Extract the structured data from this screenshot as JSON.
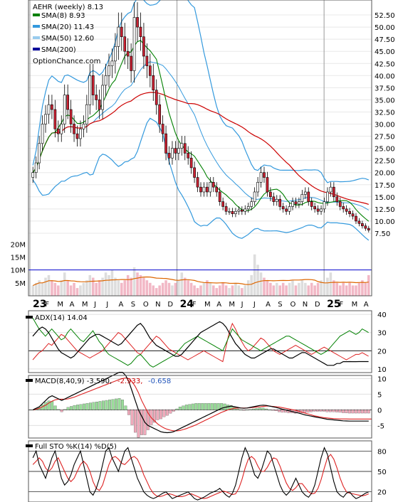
{
  "chart_data": {
    "type": "stock-chart",
    "main": {
      "title": "AEHR (weekly) 8.13",
      "legend": [
        {
          "label": "SMA(8) 8.93",
          "color": "#008000"
        },
        {
          "label": "SMA(20) 11.43",
          "color": "#3399dd"
        },
        {
          "label": "SMA(50) 12.60",
          "color": "#99ccee"
        },
        {
          "label": "SMA(200)",
          "color": "#000099"
        }
      ],
      "watermark": "OptionChance.com",
      "y_ticks": [
        "52.50",
        "50.00",
        "47.50",
        "45.00",
        "42.50",
        "40.00",
        "37.50",
        "35.00",
        "32.50",
        "30.00",
        "27.50",
        "25.00",
        "22.50",
        "20.00",
        "17.50",
        "15.00",
        "12.50",
        "10.00",
        "7.50"
      ],
      "y_range": [
        5,
        55
      ],
      "volume_ticks": [
        "20M",
        "15M",
        "10M",
        "5M"
      ],
      "volume_range": [
        0,
        22
      ],
      "closes": [
        20,
        22,
        26,
        30,
        32,
        34,
        33,
        29,
        28,
        30,
        36,
        33,
        30,
        28,
        27,
        29,
        30,
        34,
        40,
        36,
        35,
        33,
        38,
        40,
        42,
        43,
        46,
        50,
        48,
        45,
        44,
        41,
        52,
        50,
        48,
        44,
        42,
        40,
        37,
        34,
        30,
        28,
        24,
        23,
        25,
        24,
        25,
        26,
        24,
        23,
        21,
        19,
        17,
        16,
        17,
        16,
        18,
        17,
        16,
        14,
        13,
        12,
        12,
        11.5,
        12,
        12.3,
        12,
        12.5,
        13,
        14,
        16,
        18,
        20,
        19,
        16,
        15,
        14,
        14.5,
        13,
        12.5,
        12,
        13,
        14,
        13.5,
        14,
        15.5,
        16,
        14,
        13,
        12.5,
        12,
        12.5,
        14,
        16,
        17,
        15,
        14,
        13,
        12.5,
        12,
        11.5,
        11,
        10,
        9.5,
        9,
        8.5,
        8.13
      ],
      "volumes": [
        4,
        5,
        6,
        5,
        7,
        8,
        6,
        5,
        4,
        6,
        9,
        6,
        4,
        5,
        3,
        4,
        5,
        6,
        8,
        7,
        5,
        6,
        7,
        9,
        8,
        10,
        7,
        6,
        5,
        6,
        8,
        7,
        11,
        9,
        8,
        7,
        6,
        5,
        4,
        3,
        4,
        5,
        6,
        5,
        4,
        5,
        6,
        9,
        7,
        6,
        5,
        4,
        3,
        4,
        5,
        6,
        5,
        4,
        3,
        4,
        5,
        4,
        3,
        4,
        5,
        4,
        3,
        4,
        6,
        8,
        16,
        12,
        9,
        7,
        6,
        5,
        4,
        5,
        4,
        5,
        4,
        5,
        6,
        4,
        5,
        6,
        5,
        4,
        5,
        4,
        5,
        6,
        5,
        7,
        9,
        6,
        5,
        4,
        5,
        4,
        5,
        4,
        4,
        5,
        6,
        5,
        8
      ],
      "sma200_volume": 10
    },
    "x_axis": {
      "labels": [
        "23",
        "F",
        "M",
        "A",
        "M",
        "J",
        "J",
        "A",
        "S",
        "O",
        "N",
        "D",
        "24",
        "F",
        "M",
        "A",
        "M",
        "J",
        "J",
        "A",
        "S",
        "O",
        "N",
        "D",
        "25",
        "F",
        "M",
        "A"
      ],
      "year_labels": [
        "23",
        "24",
        "25"
      ]
    },
    "adx": {
      "label": "ADX(14) 14.04",
      "y_ticks": [
        "40",
        "30",
        "20",
        "10"
      ],
      "y_range": [
        8,
        42
      ],
      "adx": [
        28,
        30,
        32,
        33,
        32,
        30,
        27,
        24,
        21,
        19,
        18,
        17,
        16,
        17,
        19,
        21,
        23,
        25,
        27,
        28,
        29,
        29,
        28,
        27,
        26,
        25,
        24,
        23,
        24,
        26,
        28,
        30,
        32,
        34,
        35,
        33,
        30,
        27,
        25,
        23,
        22,
        21,
        20,
        19,
        18,
        17,
        17,
        18,
        20,
        22,
        24,
        26,
        28,
        30,
        31,
        32,
        33,
        34,
        35,
        36,
        35,
        33,
        30,
        27,
        24,
        22,
        20,
        18,
        17,
        16,
        16,
        17,
        18,
        19,
        20,
        21,
        21,
        20,
        19,
        18,
        17,
        16,
        16,
        17,
        18,
        19,
        19,
        18,
        17,
        16,
        15,
        14,
        13,
        12,
        12,
        12,
        13,
        13,
        14,
        14,
        14.04,
        14,
        14,
        14.04,
        14.04,
        14.04,
        14.04
      ],
      "plus_di": [
        38,
        35,
        32,
        30,
        28,
        30,
        32,
        30,
        28,
        26,
        27,
        30,
        32,
        30,
        28,
        26,
        25,
        27,
        29,
        31,
        28,
        25,
        23,
        20,
        18,
        17,
        16,
        15,
        14,
        13,
        12,
        13,
        15,
        17,
        18,
        16,
        14,
        12,
        11,
        12,
        13,
        14,
        15,
        16,
        17,
        18,
        20,
        22,
        24,
        25,
        26,
        27,
        28,
        27,
        26,
        25,
        24,
        23,
        22,
        21,
        20,
        24,
        28,
        32,
        30,
        28,
        26,
        25,
        24,
        23,
        22,
        21,
        20,
        21,
        22,
        23,
        24,
        25,
        26,
        27,
        28,
        28,
        27,
        26,
        25,
        24,
        23,
        22,
        21,
        20,
        19,
        18,
        19,
        20,
        22,
        24,
        26,
        28,
        29,
        30,
        31,
        30,
        29,
        30,
        32,
        31,
        30
      ],
      "minus_di": [
        15,
        17,
        19,
        20,
        22,
        24,
        23,
        25,
        27,
        29,
        28,
        26,
        24,
        22,
        20,
        19,
        18,
        17,
        16,
        17,
        18,
        19,
        20,
        22,
        24,
        26,
        28,
        30,
        29,
        27,
        25,
        23,
        21,
        19,
        18,
        20,
        22,
        24,
        26,
        28,
        27,
        25,
        23,
        21,
        20,
        19,
        18,
        17,
        16,
        15,
        16,
        17,
        18,
        19,
        20,
        19,
        18,
        17,
        16,
        15,
        14,
        22,
        30,
        35,
        32,
        28,
        25,
        22,
        20,
        21,
        23,
        25,
        27,
        26,
        24,
        22,
        20,
        19,
        18,
        19,
        20,
        21,
        22,
        23,
        22,
        21,
        20,
        19,
        18,
        19,
        20,
        21,
        22,
        21,
        20,
        19,
        18,
        17,
        16,
        15,
        16,
        17,
        18,
        18,
        19,
        18,
        17
      ]
    },
    "macd": {
      "label": "MACD(8,40,9) -3.590,",
      "signal_label": "-2.933,",
      "hist_label": "-0.658",
      "y_ticks": [
        "10",
        "5",
        "0",
        "-5"
      ],
      "y_range": [
        -9,
        11
      ],
      "macd": [
        0,
        0.5,
        1,
        2,
        3,
        4,
        4.5,
        4,
        3.5,
        3,
        3.5,
        4,
        4.5,
        5,
        5.5,
        6,
        6.5,
        7,
        7.5,
        8,
        8.5,
        9,
        9.5,
        10,
        10.5,
        11,
        11.5,
        12,
        12,
        11,
        9,
        6,
        3,
        0,
        -2,
        -4,
        -5,
        -5.5,
        -6,
        -6.5,
        -7,
        -7.2,
        -7.3,
        -7.2,
        -7,
        -6.5,
        -6,
        -5.5,
        -5,
        -4.5,
        -4,
        -3.5,
        -3,
        -2.5,
        -2,
        -1.5,
        -1,
        -0.5,
        0,
        0.5,
        0.8,
        1,
        1.2,
        1,
        0.8,
        0.6,
        0.5,
        0.6,
        0.8,
        1,
        1.2,
        1.4,
        1.5,
        1.4,
        1.2,
        1,
        0.8,
        0.5,
        0.2,
        0,
        -0.3,
        -0.5,
        -0.8,
        -1,
        -1.3,
        -1.6,
        -1.8,
        -2,
        -2.2,
        -2.4,
        -2.6,
        -2.8,
        -3,
        -3.1,
        -3.2,
        -3.3,
        -3.4,
        -3.5,
        -3.55,
        -3.59,
        -3.59,
        -3.59,
        -3.59,
        -3.59,
        -3.59,
        -3.59
      ],
      "signal": [
        0,
        0.2,
        0.5,
        1,
        1.5,
        2.2,
        2.8,
        3.2,
        3.4,
        3.4,
        3.4,
        3.5,
        3.8,
        4.1,
        4.5,
        4.9,
        5.3,
        5.7,
        6.1,
        6.5,
        6.9,
        7.3,
        7.7,
        8.1,
        8.5,
        8.9,
        9.3,
        9.7,
        10,
        10.2,
        10,
        9,
        7.5,
        5.5,
        3,
        1,
        -1,
        -2.5,
        -3.5,
        -4.5,
        -5.2,
        -5.8,
        -6.2,
        -6.5,
        -6.7,
        -6.7,
        -6.6,
        -6.3,
        -6,
        -5.6,
        -5.2,
        -4.8,
        -4.3,
        -3.8,
        -3.3,
        -2.8,
        -2.3,
        -1.8,
        -1.3,
        -0.8,
        -0.4,
        0,
        0.3,
        0.5,
        0.6,
        0.6,
        0.6,
        0.6,
        0.7,
        0.8,
        0.9,
        1,
        1.1,
        1.2,
        1.2,
        1.1,
        1,
        0.9,
        0.7,
        0.5,
        0.3,
        0.1,
        -0.1,
        -0.4,
        -0.7,
        -1,
        -1.3,
        -1.6,
        -1.9,
        -2.1,
        -2.3,
        -2.5,
        -2.6,
        -2.7,
        -2.8,
        -2.85,
        -2.9,
        -2.91,
        -2.92,
        -2.93,
        -2.93,
        -2.93,
        -2.93,
        -2.93,
        -2.93,
        -2.93,
        -2.933
      ]
    },
    "sto": {
      "label": "Full STO %K(14) %D(5)",
      "y_ticks": [
        "80",
        "50",
        "20"
      ],
      "y_range": [
        5,
        95
      ],
      "k": [
        70,
        80,
        60,
        50,
        40,
        55,
        70,
        80,
        60,
        40,
        30,
        35,
        45,
        60,
        70,
        80,
        60,
        40,
        20,
        15,
        25,
        40,
        60,
        80,
        85,
        70,
        60,
        50,
        65,
        80,
        85,
        70,
        55,
        40,
        30,
        20,
        15,
        12,
        10,
        12,
        15,
        18,
        20,
        15,
        10,
        12,
        14,
        16,
        18,
        20,
        15,
        10,
        8,
        10,
        12,
        15,
        18,
        20,
        22,
        25,
        20,
        15,
        12,
        18,
        30,
        50,
        70,
        85,
        75,
        60,
        45,
        40,
        50,
        65,
        80,
        75,
        60,
        45,
        30,
        20,
        15,
        20,
        30,
        40,
        30,
        20,
        15,
        12,
        18,
        30,
        50,
        70,
        85,
        75,
        55,
        35,
        20,
        15,
        12,
        18,
        20,
        14,
        10,
        12,
        15,
        18,
        20
      ],
      "d": [
        60,
        65,
        70,
        65,
        55,
        50,
        55,
        65,
        70,
        60,
        50,
        40,
        35,
        40,
        50,
        60,
        65,
        60,
        50,
        35,
        25,
        22,
        30,
        45,
        60,
        70,
        72,
        68,
        62,
        60,
        65,
        70,
        72,
        68,
        58,
        45,
        35,
        25,
        18,
        14,
        13,
        14,
        16,
        17,
        16,
        14,
        13,
        13,
        14,
        16,
        17,
        15,
        13,
        11,
        10,
        11,
        13,
        15,
        17,
        19,
        21,
        20,
        18,
        16,
        17,
        25,
        38,
        55,
        68,
        72,
        68,
        58,
        50,
        50,
        56,
        65,
        70,
        68,
        58,
        45,
        33,
        25,
        22,
        26,
        32,
        32,
        26,
        20,
        17,
        18,
        25,
        38,
        55,
        70,
        75,
        68,
        55,
        40,
        28,
        20,
        18,
        17,
        16,
        15,
        14,
        15,
        17
      ]
    }
  }
}
